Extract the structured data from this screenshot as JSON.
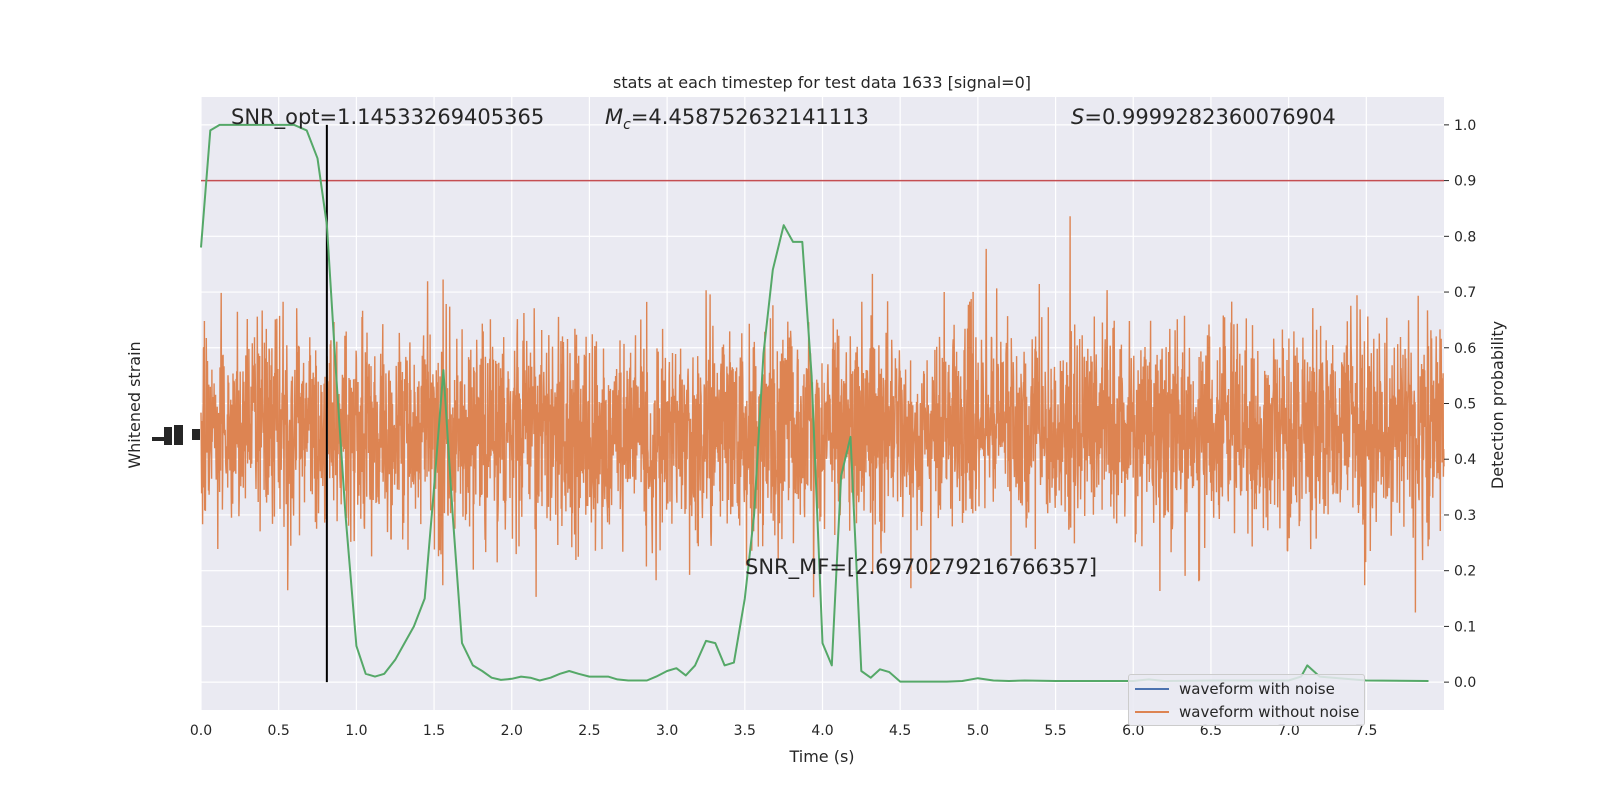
{
  "chart_data": {
    "type": "line",
    "title": "stats at each timestep for test data 1633 [signal=0]",
    "xlabel": "Time (s)",
    "ylabel_left": "Whitened strain",
    "ylabel_right": "Detection probability",
    "xlim": [
      0,
      8
    ],
    "ylim_right": [
      -0.05,
      1.05
    ],
    "x_ticks": [
      "0.0",
      "0.5",
      "1.0",
      "1.5",
      "2.0",
      "2.5",
      "3.0",
      "3.5",
      "4.0",
      "4.5",
      "5.0",
      "5.5",
      "6.0",
      "6.5",
      "7.0",
      "7.5"
    ],
    "y_ticks_right": [
      "0.0",
      "0.1",
      "0.2",
      "0.3",
      "0.4",
      "0.5",
      "0.6",
      "0.7",
      "0.8",
      "0.9",
      "1.0"
    ],
    "annotations": {
      "snr_opt": "SNR_opt=1.14533269405365",
      "mc_symbol": "M",
      "mc_sub": "c",
      "mc_value": "=4.458752632141113",
      "s_symbol": "S",
      "s_value": "=0.9999282360076904",
      "snr_mf": "SNR_MF=[2.6970279216766357]"
    },
    "threshold": 0.9,
    "vertical_marker_time": 0.81,
    "series": [
      {
        "name": "waveform with noise",
        "color": "#4c72b0"
      },
      {
        "name": "waveform without noise",
        "color": "#dd8452"
      }
    ],
    "detection_probability": {
      "color": "#55a868",
      "x": [
        0.0,
        0.06,
        0.12,
        0.2,
        0.3,
        0.4,
        0.5,
        0.6,
        0.68,
        0.75,
        0.81,
        0.87,
        0.93,
        1.0,
        1.06,
        1.12,
        1.18,
        1.25,
        1.31,
        1.37,
        1.44,
        1.5,
        1.56,
        1.62,
        1.68,
        1.75,
        1.81,
        1.87,
        1.93,
        2.0,
        2.06,
        2.12,
        2.18,
        2.25,
        2.31,
        2.37,
        2.43,
        2.5,
        2.56,
        2.62,
        2.68,
        2.75,
        2.81,
        2.87,
        2.93,
        3.0,
        3.06,
        3.12,
        3.18,
        3.25,
        3.31,
        3.37,
        3.43,
        3.5,
        3.56,
        3.62,
        3.68,
        3.75,
        3.81,
        3.87,
        3.93,
        4.0,
        4.06,
        4.12,
        4.18,
        4.25,
        4.31,
        4.37,
        4.43,
        4.5,
        4.6,
        4.7,
        4.8,
        4.9,
        5.0,
        5.1,
        5.2,
        5.3,
        5.5,
        5.7,
        6.0,
        6.1,
        6.2,
        6.5,
        7.0,
        7.08,
        7.12,
        7.16,
        7.2,
        7.5,
        7.9
      ],
      "y": [
        0.78,
        0.99,
        1.0,
        1.0,
        1.0,
        1.0,
        1.0,
        1.0,
        0.99,
        0.94,
        0.82,
        0.55,
        0.3,
        0.065,
        0.015,
        0.01,
        0.015,
        0.04,
        0.07,
        0.1,
        0.15,
        0.35,
        0.56,
        0.3,
        0.07,
        0.03,
        0.02,
        0.008,
        0.004,
        0.006,
        0.01,
        0.008,
        0.003,
        0.008,
        0.015,
        0.02,
        0.015,
        0.01,
        0.01,
        0.01,
        0.005,
        0.003,
        0.003,
        0.003,
        0.01,
        0.02,
        0.025,
        0.012,
        0.03,
        0.074,
        0.07,
        0.03,
        0.035,
        0.15,
        0.3,
        0.59,
        0.74,
        0.82,
        0.79,
        0.79,
        0.55,
        0.07,
        0.03,
        0.37,
        0.44,
        0.02,
        0.008,
        0.023,
        0.018,
        0.001,
        0.001,
        0.001,
        0.001,
        0.002,
        0.007,
        0.003,
        0.002,
        0.003,
        0.002,
        0.002,
        0.002,
        0.005,
        0.002,
        0.003,
        0.003,
        0.01,
        0.03,
        0.02,
        0.01,
        0.003,
        0.002
      ]
    }
  }
}
